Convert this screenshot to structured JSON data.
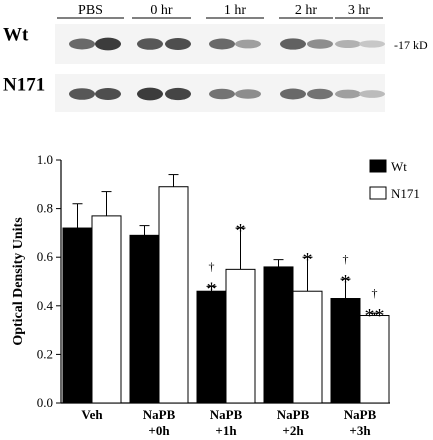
{
  "blot": {
    "time_labels": [
      "PBS",
      "0 hr",
      "1 hr",
      "2 hr",
      "3 hr"
    ],
    "row_labels": [
      "Wt",
      "N171"
    ],
    "size_marker": "-17 kD",
    "band_intensity": {
      "Wt": [
        0.7,
        0.95,
        0.8,
        0.85,
        0.7,
        0.4,
        0.75,
        0.5,
        0.3,
        0.18
      ],
      "N171": [
        0.8,
        0.85,
        0.95,
        0.9,
        0.65,
        0.5,
        0.7,
        0.65,
        0.4,
        0.25
      ]
    }
  },
  "chart_data": {
    "type": "bar",
    "ylabel": "Optical Density Units",
    "ylim": [
      0.0,
      1.0
    ],
    "yticks": [
      "0.0",
      "0.2",
      "0.4",
      "0.6",
      "0.8",
      "1.0"
    ],
    "categories": [
      [
        "Veh"
      ],
      [
        "NaPB",
        "+0h"
      ],
      [
        "NaPB",
        "+1h"
      ],
      [
        "NaPB",
        "+2h"
      ],
      [
        "NaPB",
        "+3h"
      ]
    ],
    "series": [
      {
        "name": "Wt",
        "color": "#000000",
        "values": [
          0.72,
          0.69,
          0.46,
          0.56,
          0.43
        ],
        "errors": [
          0.1,
          0.04,
          0.02,
          0.03,
          0.08
        ]
      },
      {
        "name": "N171",
        "color": "#ffffff",
        "values": [
          0.77,
          0.89,
          0.55,
          0.46,
          0.36
        ],
        "errors": [
          0.1,
          0.05,
          0.17,
          0.14,
          0.01
        ]
      }
    ],
    "annotations": [
      {
        "series": 0,
        "category": 2,
        "marks": [
          "*",
          "†"
        ]
      },
      {
        "series": 1,
        "category": 2,
        "marks": [
          "*"
        ]
      },
      {
        "series": 1,
        "category": 3,
        "marks": [
          "*"
        ]
      },
      {
        "series": 0,
        "category": 4,
        "marks": [
          "*",
          "†"
        ]
      },
      {
        "series": 1,
        "category": 4,
        "marks": [
          "**",
          "†"
        ]
      }
    ],
    "legend_position": "top-right",
    "grid": false
  }
}
